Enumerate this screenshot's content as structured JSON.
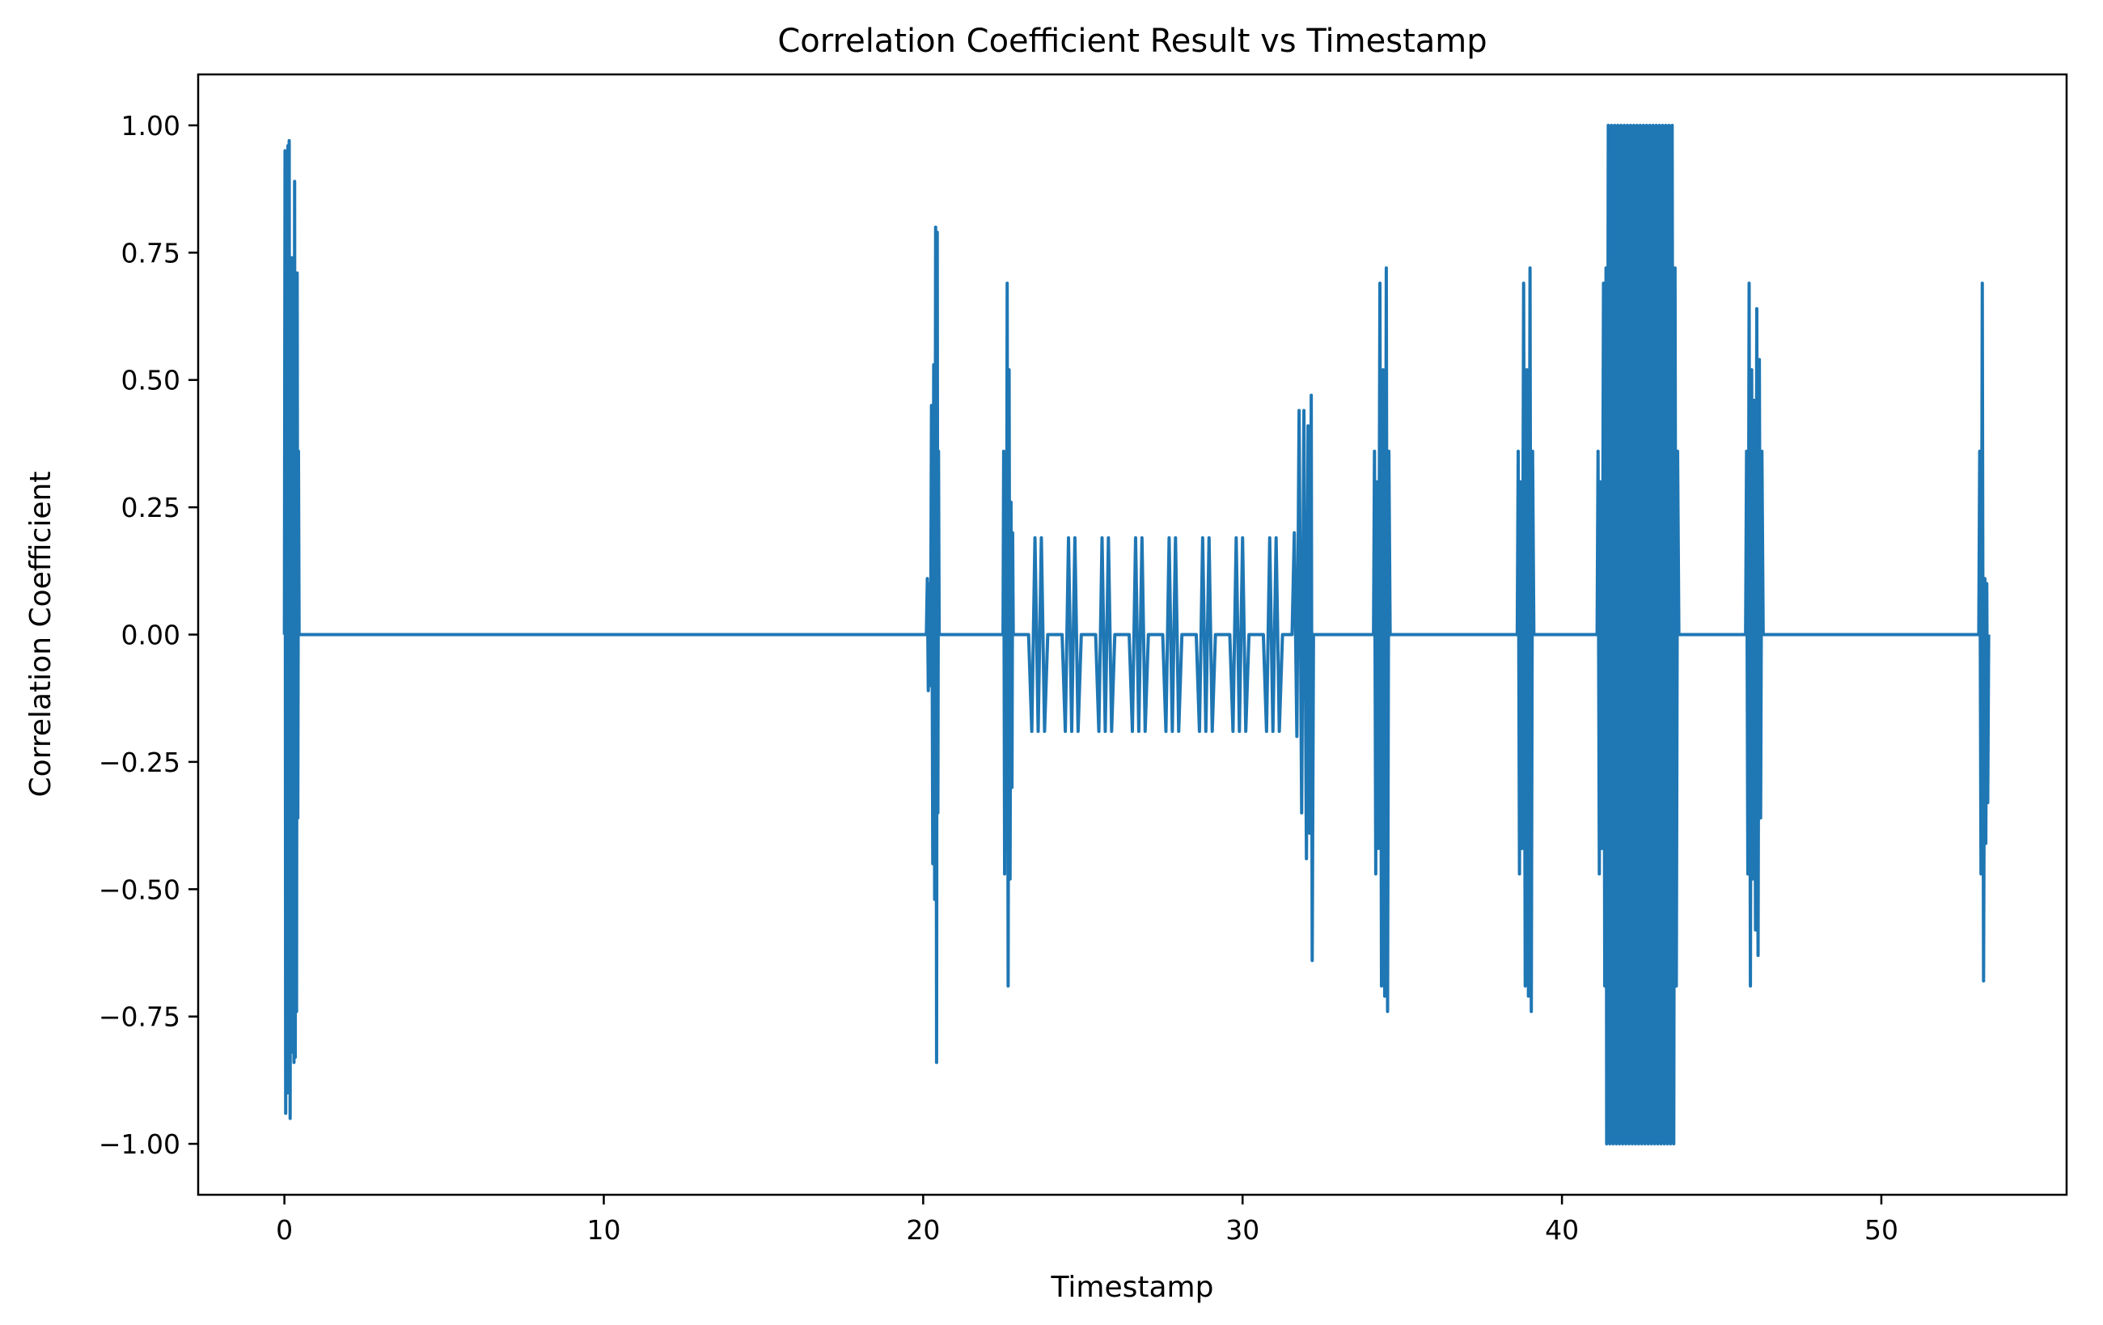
{
  "chart_data": {
    "type": "line",
    "title": "Correlation Coefficient Result vs Timestamp",
    "xlabel": "Timestamp",
    "ylabel": "Correlation Coefficient",
    "xlim": [
      -2.7,
      55.8
    ],
    "ylim": [
      -1.1,
      1.1
    ],
    "xticks": [
      0,
      10,
      20,
      30,
      40,
      50
    ],
    "xtick_labels": [
      "0",
      "10",
      "20",
      "30",
      "40",
      "50"
    ],
    "yticks": [
      1.0,
      0.75,
      0.5,
      0.25,
      0.0,
      -0.25,
      -0.5,
      -0.75,
      -1.0
    ],
    "ytick_labels": [
      "1.00",
      "0.75",
      "0.50",
      "0.25",
      "0.00",
      "−0.25",
      "−0.50",
      "−0.75",
      "−1.00"
    ],
    "grid": false,
    "series": [
      {
        "color": "#1f77b4",
        "points": [
          [
            0.0,
            0.0
          ],
          [
            0.02,
            0.95
          ],
          [
            0.04,
            -0.94
          ],
          [
            0.07,
            0.85
          ],
          [
            0.09,
            -0.9
          ],
          [
            0.11,
            0.96
          ],
          [
            0.13,
            -0.75
          ],
          [
            0.15,
            0.97
          ],
          [
            0.18,
            -0.95
          ],
          [
            0.2,
            0.7
          ],
          [
            0.22,
            -0.6
          ],
          [
            0.24,
            0.74
          ],
          [
            0.26,
            -0.82
          ],
          [
            0.28,
            0.55
          ],
          [
            0.3,
            -0.84
          ],
          [
            0.32,
            0.89
          ],
          [
            0.34,
            -0.83
          ],
          [
            0.36,
            0.5
          ],
          [
            0.38,
            -0.74
          ],
          [
            0.4,
            0.71
          ],
          [
            0.42,
            -0.36
          ],
          [
            0.44,
            0.36
          ],
          [
            0.46,
            0.0
          ],
          [
            20.1,
            0.0
          ],
          [
            20.13,
            0.11
          ],
          [
            20.16,
            -0.11
          ],
          [
            20.2,
            0.1
          ],
          [
            20.23,
            -0.1
          ],
          [
            20.26,
            0.45
          ],
          [
            20.3,
            -0.45
          ],
          [
            20.33,
            0.53
          ],
          [
            20.36,
            -0.52
          ],
          [
            20.39,
            0.8
          ],
          [
            20.42,
            -0.84
          ],
          [
            20.44,
            0.79
          ],
          [
            20.46,
            -0.35
          ],
          [
            20.48,
            0.36
          ],
          [
            20.5,
            0.0
          ],
          [
            22.5,
            0.0
          ],
          [
            22.52,
            0.36
          ],
          [
            22.55,
            -0.47
          ],
          [
            22.58,
            0.3
          ],
          [
            22.6,
            -0.42
          ],
          [
            22.63,
            0.69
          ],
          [
            22.66,
            -0.69
          ],
          [
            22.69,
            0.52
          ],
          [
            22.72,
            -0.48
          ],
          [
            22.75,
            0.26
          ],
          [
            22.78,
            -0.3
          ],
          [
            22.8,
            0.2
          ],
          [
            22.82,
            0.0
          ],
          [
            23.3,
            0.0
          ],
          [
            23.4,
            -0.19
          ],
          [
            23.5,
            0.19
          ],
          [
            23.6,
            -0.19
          ],
          [
            23.7,
            0.19
          ],
          [
            23.8,
            -0.19
          ],
          [
            23.9,
            0.0
          ],
          [
            24.35,
            0.0
          ],
          [
            24.45,
            -0.19
          ],
          [
            24.55,
            0.19
          ],
          [
            24.65,
            -0.19
          ],
          [
            24.75,
            0.19
          ],
          [
            24.85,
            -0.19
          ],
          [
            24.95,
            0.0
          ],
          [
            25.4,
            0.0
          ],
          [
            25.5,
            -0.19
          ],
          [
            25.6,
            0.19
          ],
          [
            25.7,
            -0.19
          ],
          [
            25.8,
            0.19
          ],
          [
            25.9,
            -0.19
          ],
          [
            26.0,
            0.0
          ],
          [
            26.45,
            0.0
          ],
          [
            26.55,
            -0.19
          ],
          [
            26.65,
            0.19
          ],
          [
            26.75,
            -0.19
          ],
          [
            26.85,
            0.19
          ],
          [
            26.95,
            -0.19
          ],
          [
            27.05,
            0.0
          ],
          [
            27.5,
            0.0
          ],
          [
            27.6,
            -0.19
          ],
          [
            27.7,
            0.19
          ],
          [
            27.8,
            -0.19
          ],
          [
            27.9,
            0.19
          ],
          [
            28.0,
            -0.19
          ],
          [
            28.1,
            0.0
          ],
          [
            28.55,
            0.0
          ],
          [
            28.65,
            -0.19
          ],
          [
            28.75,
            0.19
          ],
          [
            28.85,
            -0.19
          ],
          [
            28.95,
            0.19
          ],
          [
            29.05,
            -0.19
          ],
          [
            29.15,
            0.0
          ],
          [
            29.6,
            0.0
          ],
          [
            29.7,
            -0.19
          ],
          [
            29.8,
            0.19
          ],
          [
            29.9,
            -0.19
          ],
          [
            30.0,
            0.19
          ],
          [
            30.1,
            -0.19
          ],
          [
            30.2,
            0.0
          ],
          [
            30.65,
            0.0
          ],
          [
            30.75,
            -0.19
          ],
          [
            30.85,
            0.19
          ],
          [
            30.95,
            -0.19
          ],
          [
            31.05,
            0.19
          ],
          [
            31.15,
            -0.19
          ],
          [
            31.25,
            0.0
          ],
          [
            31.55,
            0.0
          ],
          [
            31.62,
            0.2
          ],
          [
            31.7,
            -0.2
          ],
          [
            31.77,
            0.44
          ],
          [
            31.85,
            -0.35
          ],
          [
            31.92,
            0.44
          ],
          [
            32.0,
            -0.44
          ],
          [
            32.05,
            0.41
          ],
          [
            32.1,
            -0.39
          ],
          [
            32.15,
            0.47
          ],
          [
            32.18,
            -0.64
          ],
          [
            32.22,
            0.0
          ],
          [
            34.1,
            0.0
          ],
          [
            34.13,
            0.36
          ],
          [
            34.17,
            -0.47
          ],
          [
            34.2,
            0.3
          ],
          [
            34.25,
            -0.42
          ],
          [
            34.3,
            0.69
          ],
          [
            34.35,
            -0.69
          ],
          [
            34.4,
            0.52
          ],
          [
            34.45,
            -0.71
          ],
          [
            34.5,
            0.72
          ],
          [
            34.54,
            -0.74
          ],
          [
            34.58,
            0.36
          ],
          [
            34.62,
            0.0
          ],
          [
            38.6,
            0.0
          ],
          [
            38.63,
            0.36
          ],
          [
            38.67,
            -0.47
          ],
          [
            38.7,
            0.3
          ],
          [
            38.75,
            -0.42
          ],
          [
            38.8,
            0.69
          ],
          [
            38.85,
            -0.69
          ],
          [
            38.9,
            0.52
          ],
          [
            38.95,
            -0.71
          ],
          [
            39.0,
            0.72
          ],
          [
            39.04,
            -0.74
          ],
          [
            39.08,
            0.36
          ],
          [
            39.12,
            0.0
          ],
          [
            41.1,
            0.0
          ],
          [
            41.13,
            0.36
          ],
          [
            41.17,
            -0.47
          ],
          [
            41.2,
            0.3
          ],
          [
            41.25,
            -0.42
          ],
          [
            41.3,
            0.69
          ],
          [
            41.34,
            -0.69
          ],
          [
            41.38,
            0.72
          ],
          [
            41.4,
            -1.0
          ],
          [
            41.45,
            1.0
          ],
          [
            41.5,
            -1.0
          ],
          [
            41.55,
            1.0
          ],
          [
            41.6,
            -1.0
          ],
          [
            41.65,
            1.0
          ],
          [
            41.7,
            -1.0
          ],
          [
            41.75,
            1.0
          ],
          [
            41.8,
            -1.0
          ],
          [
            41.85,
            1.0
          ],
          [
            41.9,
            -1.0
          ],
          [
            41.95,
            1.0
          ],
          [
            42.0,
            -1.0
          ],
          [
            42.05,
            1.0
          ],
          [
            42.1,
            -1.0
          ],
          [
            42.15,
            1.0
          ],
          [
            42.2,
            -1.0
          ],
          [
            42.25,
            1.0
          ],
          [
            42.3,
            -1.0
          ],
          [
            42.35,
            1.0
          ],
          [
            42.4,
            -1.0
          ],
          [
            42.45,
            1.0
          ],
          [
            42.5,
            -1.0
          ],
          [
            42.55,
            1.0
          ],
          [
            42.6,
            -1.0
          ],
          [
            42.65,
            1.0
          ],
          [
            42.7,
            -1.0
          ],
          [
            42.75,
            1.0
          ],
          [
            42.8,
            -1.0
          ],
          [
            42.85,
            1.0
          ],
          [
            42.9,
            -1.0
          ],
          [
            42.95,
            1.0
          ],
          [
            43.0,
            -1.0
          ],
          [
            43.05,
            1.0
          ],
          [
            43.1,
            -1.0
          ],
          [
            43.15,
            1.0
          ],
          [
            43.2,
            -1.0
          ],
          [
            43.25,
            1.0
          ],
          [
            43.3,
            -1.0
          ],
          [
            43.35,
            1.0
          ],
          [
            43.4,
            -1.0
          ],
          [
            43.45,
            1.0
          ],
          [
            43.5,
            -1.0
          ],
          [
            43.54,
            0.72
          ],
          [
            43.58,
            -0.69
          ],
          [
            43.62,
            0.36
          ],
          [
            43.66,
            0.0
          ],
          [
            45.75,
            0.0
          ],
          [
            45.78,
            0.36
          ],
          [
            45.82,
            -0.47
          ],
          [
            45.86,
            0.69
          ],
          [
            45.9,
            -0.69
          ],
          [
            45.94,
            0.52
          ],
          [
            45.98,
            -0.48
          ],
          [
            46.02,
            0.46
          ],
          [
            46.06,
            -0.58
          ],
          [
            46.1,
            0.64
          ],
          [
            46.14,
            -0.63
          ],
          [
            46.18,
            0.54
          ],
          [
            46.22,
            -0.36
          ],
          [
            46.26,
            0.36
          ],
          [
            46.3,
            0.0
          ],
          [
            53.05,
            0.0
          ],
          [
            53.08,
            0.36
          ],
          [
            53.12,
            -0.47
          ],
          [
            53.16,
            0.69
          ],
          [
            53.2,
            -0.68
          ],
          [
            53.24,
            0.11
          ],
          [
            53.27,
            -0.41
          ],
          [
            53.3,
            0.1
          ],
          [
            53.33,
            -0.33
          ],
          [
            53.36,
            0.0
          ]
        ]
      }
    ]
  }
}
